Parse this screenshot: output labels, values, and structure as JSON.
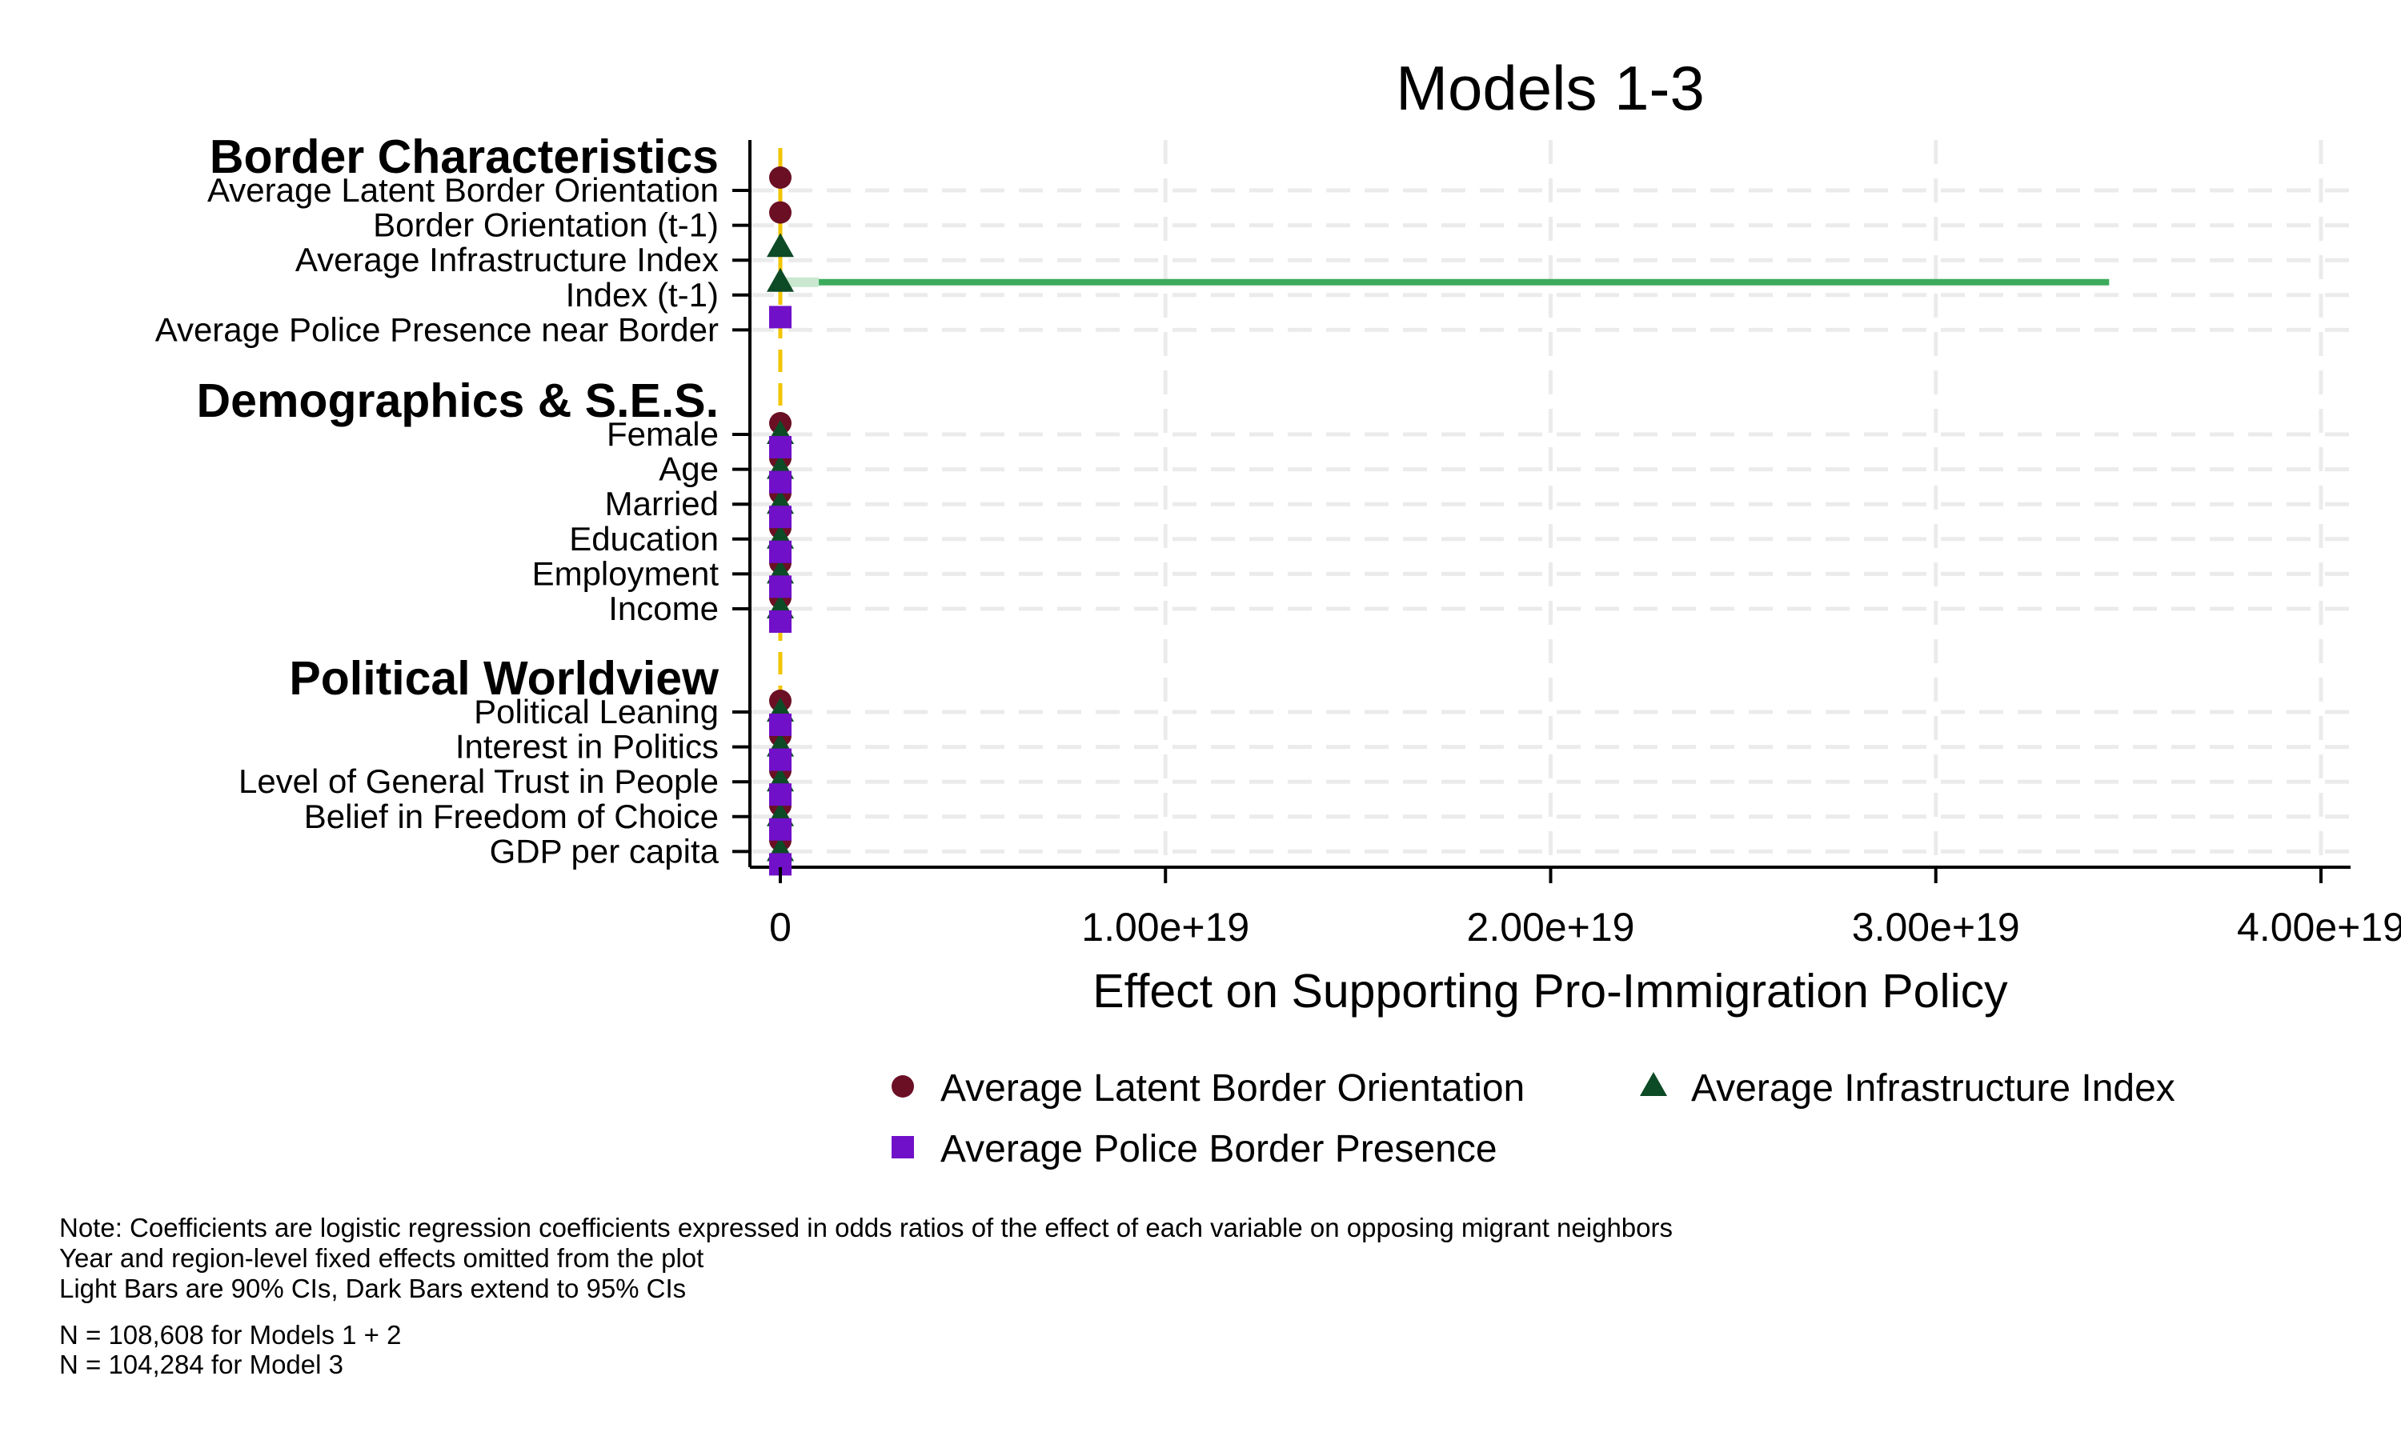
{
  "chart_data": {
    "type": "coefficient-plot",
    "title": "Models 1-3",
    "xlabel": "Effect on Supporting Pro-Immigration Policy",
    "xlim": [
      0,
      4e+19
    ],
    "xticks": [
      0,
      1e+19,
      2e+19,
      3e+19,
      4e+19
    ],
    "xtick_labels": [
      "0",
      "1.00e+19",
      "2.00e+19",
      "3.00e+19",
      "4.00e+19"
    ],
    "reference_line": 0,
    "groups": [
      {
        "heading": "Border Characteristics",
        "variables": [
          "Average Latent Border Orientation",
          "Border Orientation (t-1)",
          "Average Infrastructure Index",
          "Index (t-1)",
          "Average Police Presence near Border"
        ]
      },
      {
        "heading": "Demographics & S.E.S.",
        "variables": [
          "Female",
          "Age",
          "Married",
          "Education",
          "Employment",
          "Income"
        ]
      },
      {
        "heading": "Political Worldview",
        "variables": [
          "Political Leaning",
          "Interest in Politics",
          "Level of General Trust in People",
          "Belief in Freedom of Choice",
          "GDP per capita"
        ]
      }
    ],
    "series": [
      {
        "name": "Average Latent Border Orientation",
        "marker": "circle",
        "color": "#6b0f24",
        "points": [
          {
            "variable": "Average Latent Border Orientation",
            "estimate": 0
          },
          {
            "variable": "Border Orientation (t-1)",
            "estimate": 0
          },
          {
            "variable": "Female",
            "estimate": 0
          },
          {
            "variable": "Age",
            "estimate": 0
          },
          {
            "variable": "Married",
            "estimate": 0
          },
          {
            "variable": "Education",
            "estimate": 0
          },
          {
            "variable": "Employment",
            "estimate": 0
          },
          {
            "variable": "Income",
            "estimate": 0
          },
          {
            "variable": "Political Leaning",
            "estimate": 0
          },
          {
            "variable": "Interest in Politics",
            "estimate": 0
          },
          {
            "variable": "Level of General Trust in People",
            "estimate": 0
          },
          {
            "variable": "Belief in Freedom of Choice",
            "estimate": 0
          },
          {
            "variable": "GDP per capita",
            "estimate": 0
          }
        ]
      },
      {
        "name": "Average Infrastructure Index",
        "marker": "triangle",
        "color": "#0d4a26",
        "points": [
          {
            "variable": "Average Infrastructure Index",
            "estimate": 0
          },
          {
            "variable": "Index (t-1)",
            "estimate": 0,
            "ci90": [
              0,
              1e+18
            ],
            "ci95": [
              0,
              3.45e+19
            ]
          },
          {
            "variable": "Female",
            "estimate": 0
          },
          {
            "variable": "Age",
            "estimate": 0
          },
          {
            "variable": "Married",
            "estimate": 0
          },
          {
            "variable": "Education",
            "estimate": 0
          },
          {
            "variable": "Employment",
            "estimate": 0
          },
          {
            "variable": "Income",
            "estimate": 0
          },
          {
            "variable": "Political Leaning",
            "estimate": 0
          },
          {
            "variable": "Interest in Politics",
            "estimate": 0
          },
          {
            "variable": "Level of General Trust in People",
            "estimate": 0
          },
          {
            "variable": "Belief in Freedom of Choice",
            "estimate": 0
          },
          {
            "variable": "GDP per capita",
            "estimate": 0
          }
        ]
      },
      {
        "name": "Average Police Border Presence",
        "marker": "square",
        "color": "#7010c8",
        "points": [
          {
            "variable": "Average Police Presence near Border",
            "estimate": 0
          },
          {
            "variable": "Female",
            "estimate": 0
          },
          {
            "variable": "Age",
            "estimate": 0
          },
          {
            "variable": "Married",
            "estimate": 0
          },
          {
            "variable": "Education",
            "estimate": 0
          },
          {
            "variable": "Employment",
            "estimate": 0
          },
          {
            "variable": "Income",
            "estimate": 0
          },
          {
            "variable": "Political Leaning",
            "estimate": 0
          },
          {
            "variable": "Interest in Politics",
            "estimate": 0
          },
          {
            "variable": "Level of General Trust in People",
            "estimate": 0
          },
          {
            "variable": "Belief in Freedom of Choice",
            "estimate": 0
          },
          {
            "variable": "GDP per capita",
            "estimate": 0
          }
        ]
      }
    ],
    "legend": {
      "position": "bottom",
      "items": [
        "Average Latent Border Orientation",
        "Average Infrastructure Index",
        "Average Police Border Presence"
      ]
    },
    "notes": [
      "Note: Coefficients are logistic regression coefficients expressed in odds ratios of the effect of each variable on opposing migrant neighbors",
      "Year and region-level fixed effects omitted from the plot",
      "Light Bars are 90% CIs, Dark Bars extend to 95% CIs",
      "N = 108,608 for Models 1 + 2",
      "N = 104,284 for Model 3"
    ],
    "colors": {
      "reference_line": "#f2c500",
      "ci_light": "#c9e8cf",
      "ci_dark": "#3cab5c",
      "grid": "#ebebeb"
    }
  }
}
